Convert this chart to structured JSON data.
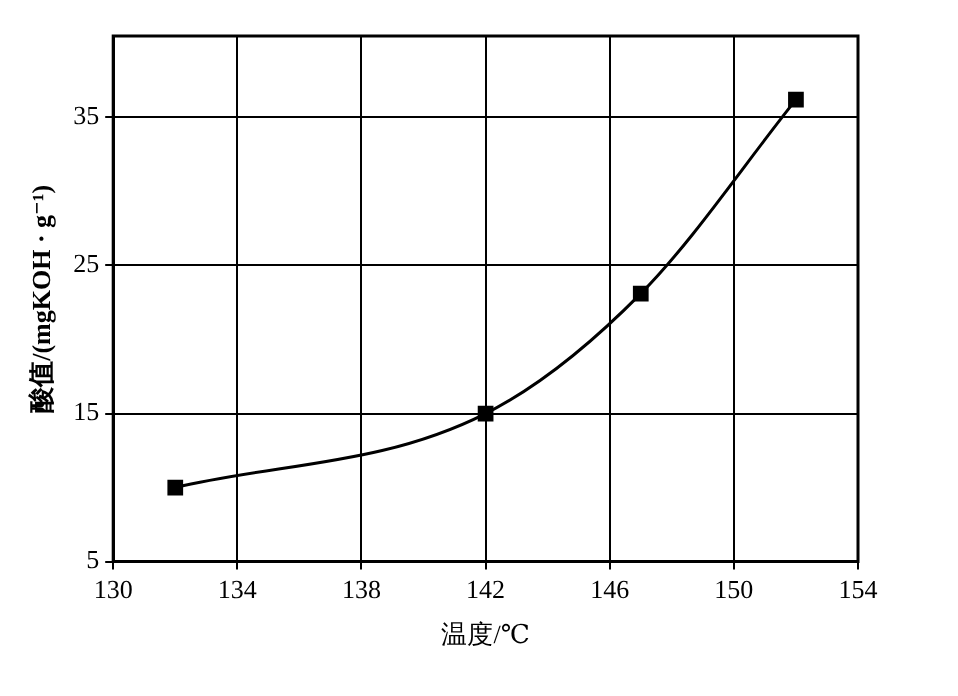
{
  "chart_data": {
    "type": "line",
    "xlabel": "温度/℃",
    "ylabel": "酸值/(mgKOH · g⁻¹)",
    "x": [
      132,
      142,
      147,
      152
    ],
    "series": [
      {
        "color": "#000000",
        "values": [
          10,
          15,
          23.1,
          36.2
        ]
      }
    ],
    "xlim": [
      130,
      154
    ],
    "xticks": [
      130,
      134,
      138,
      142,
      146,
      150,
      154
    ],
    "ylim": [
      5,
      40.5
    ],
    "yticks": [
      5,
      15,
      25,
      35
    ],
    "grid": true,
    "legend": false,
    "marker": "square",
    "line_style": "solid"
  }
}
